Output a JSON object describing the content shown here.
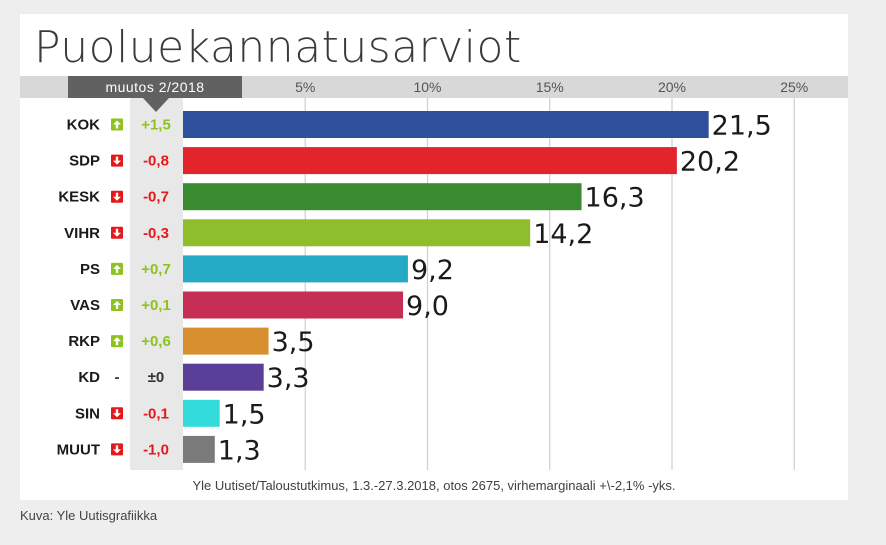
{
  "title": "Puoluekannatusarviot",
  "change_header": "muutos 2/2018",
  "source": "Yle Uutiset/Taloustutkimus, 1.3.-27.3.2018, otos 2675, virhemarginaali +\\-2,1% -yks.",
  "credit": "Kuva: Yle Uutisgrafiikka",
  "colors": {
    "up": "#8dc21f",
    "down": "#e3191b",
    "neutral": "#333333"
  },
  "chart_data": {
    "type": "bar",
    "orientation": "horizontal",
    "title": "Puoluekannatusarviot",
    "xlim": [
      0,
      25
    ],
    "xticks": [
      "5%",
      "10%",
      "15%",
      "20%",
      "25%"
    ],
    "xtick_values": [
      5,
      10,
      15,
      20,
      25
    ],
    "grid": true,
    "categories": [
      "KOK",
      "SDP",
      "KESK",
      "VIHR",
      "PS",
      "VAS",
      "RKP",
      "KD",
      "SIN",
      "MUUT"
    ],
    "values": [
      21.5,
      20.2,
      16.3,
      14.2,
      9.2,
      9.0,
      3.5,
      3.3,
      1.5,
      1.3
    ],
    "value_labels": [
      "21,5",
      "20,2",
      "16,3",
      "14,2",
      "9,2",
      "9,0",
      "3,5",
      "3,3",
      "1,5",
      "1,3"
    ],
    "changes": [
      "+1,5",
      "-0,8",
      "-0,7",
      "-0,3",
      "+0,7",
      "+0,1",
      "+0,6",
      "±0",
      "-0,1",
      "-1,0"
    ],
    "change_direction": [
      "up",
      "down",
      "down",
      "down",
      "up",
      "up",
      "up",
      "none",
      "down",
      "down"
    ],
    "bar_colors": [
      "#2e4f9c",
      "#e3242b",
      "#3a8b2f",
      "#8fbe2d",
      "#25aac6",
      "#c62e56",
      "#d88f2f",
      "#5a3f99",
      "#33dbdb",
      "#7a7a7a"
    ]
  }
}
